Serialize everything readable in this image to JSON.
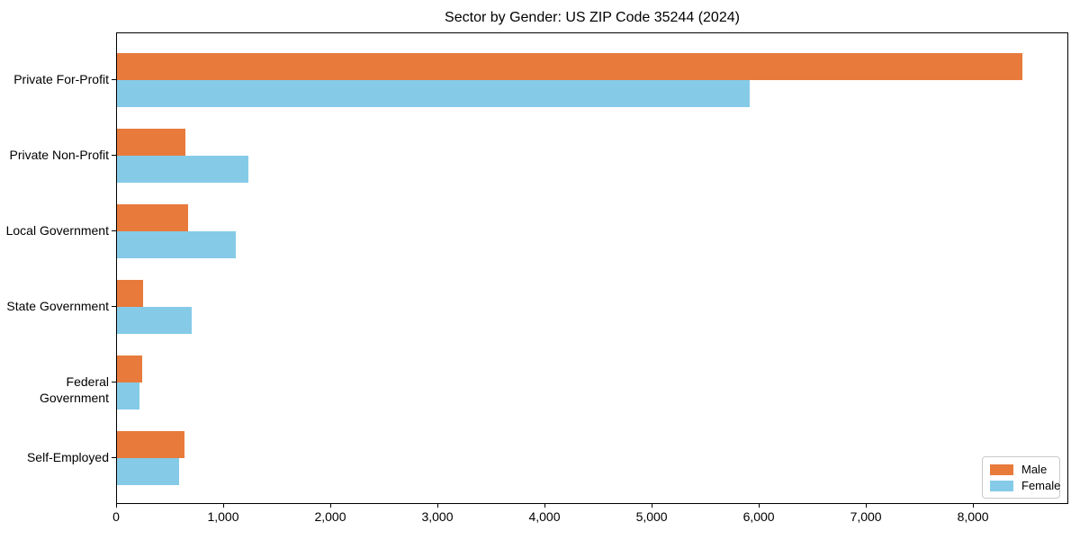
{
  "chart_data": {
    "type": "bar",
    "orientation": "horizontal",
    "title": "Sector by Gender: US ZIP Code 35244 (2024)",
    "categories": [
      "Private For-Profit",
      "Private Non-Profit",
      "Local Government",
      "State Government",
      "Federal Government",
      "Self-Employed"
    ],
    "series": [
      {
        "name": "Male",
        "color": "#e87a3c",
        "values": [
          8450,
          640,
          660,
          240,
          235,
          630
        ]
      },
      {
        "name": "Female",
        "color": "#85cbe8",
        "values": [
          5910,
          1230,
          1110,
          700,
          210,
          580
        ]
      }
    ],
    "xlim": [
      0,
      8890
    ],
    "x_ticks": [
      0,
      1000,
      2000,
      3000,
      4000,
      5000,
      6000,
      7000,
      8000
    ],
    "x_tick_labels": [
      "0",
      "1,000",
      "2,000",
      "3,000",
      "4,000",
      "5,000",
      "6,000",
      "7,000",
      "8,000"
    ],
    "legend": {
      "position": "lower right",
      "entries": [
        "Male",
        "Female"
      ]
    },
    "grid": false,
    "axis_color": "#000000",
    "background_color": "#ffffff"
  }
}
